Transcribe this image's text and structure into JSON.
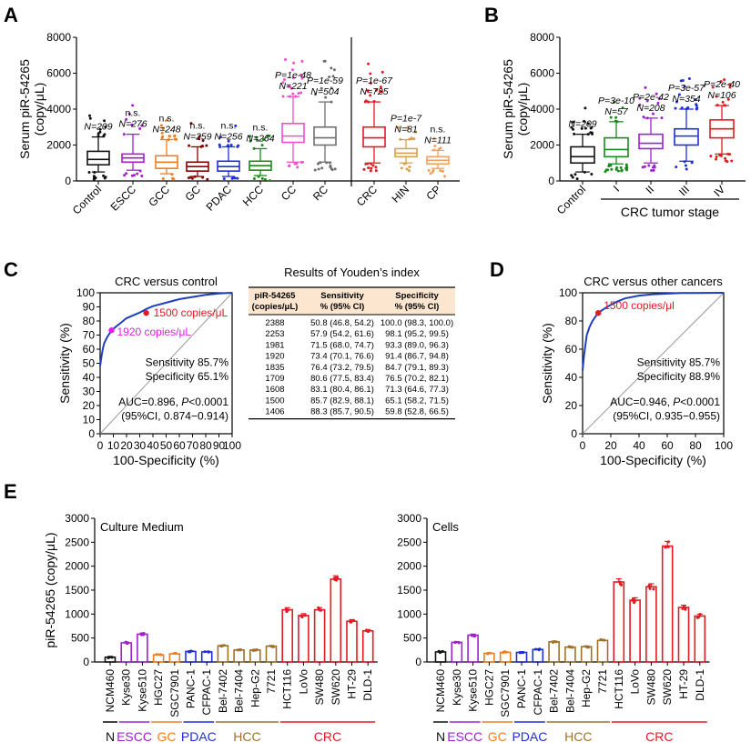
{
  "colors": {
    "black": "#111111",
    "purple": "#a020d0",
    "orange": "#f07e1e",
    "darkred": "#8b0000",
    "blue": "#1f2fd8",
    "green": "#1a8a1a",
    "pink": "#f24fd0",
    "gray": "#6f6f6f",
    "red": "#e31b23",
    "tan": "#d8a050",
    "rocblue": "#1f3fbf",
    "brown": "#a0702a",
    "salmon": "#f0a060"
  },
  "chart_data": [
    {
      "panel": "A",
      "type": "box",
      "ylabel": [
        "Serum piR-54265",
        "(copy/μL)"
      ],
      "ylim": [
        0,
        8000
      ],
      "yticks": [
        0,
        2000,
        4000,
        6000,
        8000
      ],
      "categories": [
        "Control",
        "ESCC",
        "GCC",
        "GC",
        "PDAC",
        "HCC",
        "CC",
        "RC",
        "CRC",
        "HIN",
        "CP"
      ],
      "stats": [
        {
          "label": "Control",
          "color": "#111111",
          "min": 500,
          "q1": 900,
          "med": 1200,
          "q3": 1650,
          "max": 2450,
          "p": "",
          "n": "N=209"
        },
        {
          "label": "ESCC",
          "color": "#a020d0",
          "min": 600,
          "q1": 1050,
          "med": 1280,
          "q3": 1500,
          "max": 2600,
          "p": "n.s.",
          "n": "N=276"
        },
        {
          "label": "GCC",
          "color": "#f07e1e",
          "min": 400,
          "q1": 700,
          "med": 1050,
          "q3": 1400,
          "max": 2300,
          "p": "n.s.",
          "n": "N=248"
        },
        {
          "label": "GC",
          "color": "#8b0000",
          "min": 250,
          "q1": 550,
          "med": 800,
          "q3": 1050,
          "max": 1900,
          "p": "n.s.",
          "n": "N=259"
        },
        {
          "label": "PDAC",
          "color": "#1f2fd8",
          "min": 250,
          "q1": 550,
          "med": 800,
          "q3": 1100,
          "max": 1900,
          "p": "n.s.",
          "n": "N=256"
        },
        {
          "label": "HCC",
          "color": "#1a8a1a",
          "min": 300,
          "q1": 600,
          "med": 850,
          "q3": 1100,
          "max": 1800,
          "p": "n.s.",
          "n": "N=264"
        },
        {
          "label": "CC",
          "color": "#f24fd0",
          "min": 1050,
          "q1": 2150,
          "med": 2500,
          "q3": 3200,
          "max": 4700,
          "p": "P=1e-48",
          "n": "N=221"
        },
        {
          "label": "RC",
          "color": "#6f6f6f",
          "min": 1050,
          "q1": 2000,
          "med": 2400,
          "q3": 3000,
          "max": 4400,
          "p": "P=1e-59",
          "n": "N=504"
        },
        {
          "label": "CRC",
          "color": "#e31b23",
          "min": 1000,
          "q1": 1900,
          "med": 2400,
          "q3": 3000,
          "max": 4400,
          "p": "P=1e-67",
          "n": "N=725"
        },
        {
          "label": "HIN",
          "color": "#d8a050",
          "min": 1000,
          "q1": 1350,
          "med": 1550,
          "q3": 1800,
          "max": 2300,
          "p": "P=1e-7",
          "n": "N=81"
        },
        {
          "label": "CP",
          "color": "#f0a060",
          "min": 700,
          "q1": 950,
          "med": 1150,
          "q3": 1350,
          "max": 1700,
          "p": "n.s.",
          "n": "N=111"
        }
      ]
    },
    {
      "panel": "B",
      "type": "box",
      "ylabel": [
        "Serum piR-54265",
        "(copy/μL)"
      ],
      "xlabel": "CRC tumor stage",
      "ylim": [
        0,
        8000
      ],
      "yticks": [
        0,
        2000,
        4000,
        6000,
        8000
      ],
      "categories": [
        "Control",
        "I",
        "II",
        "III",
        "IV"
      ],
      "stats": [
        {
          "label": "Control",
          "color": "#111111",
          "min": 500,
          "q1": 1000,
          "med": 1350,
          "q3": 1900,
          "max": 2600,
          "p": "",
          "n": "N=209"
        },
        {
          "label": "I",
          "color": "#1a8a1a",
          "min": 950,
          "q1": 1350,
          "med": 1750,
          "q3": 2400,
          "max": 3300,
          "p": "P=3e-10",
          "n": "N=57"
        },
        {
          "label": "II",
          "color": "#a020d0",
          "min": 1000,
          "q1": 1800,
          "med": 2100,
          "q3": 2600,
          "max": 3500,
          "p": "P=2e-42",
          "n": "N=208"
        },
        {
          "label": "III",
          "color": "#1f2fd8",
          "min": 1100,
          "q1": 2000,
          "med": 2500,
          "q3": 2900,
          "max": 4000,
          "p": "P=3e-57",
          "n": "N=354"
        },
        {
          "label": "IV",
          "color": "#e31b23",
          "min": 1500,
          "q1": 2400,
          "med": 2900,
          "q3": 3400,
          "max": 4200,
          "p": "P=2e-40",
          "n": "N=106"
        }
      ]
    },
    {
      "panel": "C",
      "type": "roc",
      "title": "CRC versus control",
      "xlabel": "100-Specificity (%)",
      "ylabel": "Sensitivity (%)",
      "xlim": [
        0,
        100
      ],
      "ylim": [
        0,
        100
      ],
      "ticks": [
        0,
        10,
        20,
        30,
        40,
        50,
        60,
        70,
        80,
        90,
        100
      ],
      "curve": [
        [
          0,
          48
        ],
        [
          1,
          55
        ],
        [
          2,
          60
        ],
        [
          3,
          64
        ],
        [
          5,
          68
        ],
        [
          7,
          71
        ],
        [
          9,
          73.5
        ],
        [
          12,
          76
        ],
        [
          16,
          79
        ],
        [
          20,
          82
        ],
        [
          25,
          84
        ],
        [
          30,
          86
        ],
        [
          35,
          88.5
        ],
        [
          40,
          90.5
        ],
        [
          50,
          93
        ],
        [
          60,
          95.5
        ],
        [
          70,
          97
        ],
        [
          80,
          98.5
        ],
        [
          90,
          99.5
        ],
        [
          100,
          100
        ]
      ],
      "points": [
        {
          "x": 34.9,
          "y": 85.7,
          "color": "#e31b23",
          "label": "1500 copies/μL"
        },
        {
          "x": 8.6,
          "y": 73.4,
          "color": "#e020e0",
          "label": "1920 copies/μL"
        }
      ],
      "stats": [
        "Sensitivity 85.7%",
        "Specificity 65.1%",
        "AUC=0.896, P<0.0001",
        "(95%CI, 0.874−0.914)"
      ]
    },
    {
      "panel": "C-table",
      "type": "table",
      "title": "Results of  Youden’s index",
      "headers": [
        [
          "piR-54265",
          "(copies/μL)"
        ],
        [
          "Sensitivity",
          "% (95% CI)"
        ],
        [
          "Specificity",
          "% (95% CI)"
        ]
      ],
      "rows": [
        [
          "2388",
          "50.8 (46.8, 54.2)",
          "100.0 (98.3, 100.0)"
        ],
        [
          "2253",
          "57.9 (54.2, 61.6)",
          "98.1 (95.2, 99.5)"
        ],
        [
          "1981",
          "71.5 (68.0, 74.7)",
          "93.3 (89.0, 96.3)"
        ],
        [
          "1920",
          "73.4 (70.1, 76.6)",
          "91.4 (86.7, 94.8)"
        ],
        [
          "1835",
          "76.4 (73.2, 79.5)",
          "84.7 (79.1, 89.3)"
        ],
        [
          "1709",
          "80.6 (77.5, 83.4)",
          "76.5 (70.2, 82.1)"
        ],
        [
          "1608",
          "83.1 (80.4, 86.1)",
          "71.3 (64.6, 77.3)"
        ],
        [
          "1500",
          "85.7 (82.9, 88.1)",
          "65.1 (58.2, 71.5)"
        ],
        [
          "1406",
          "88.3 (85.7, 90.5)",
          "59.8 (52.8, 66.5)"
        ]
      ]
    },
    {
      "panel": "D",
      "type": "roc",
      "title": "CRC versus other cancers",
      "xlabel": "100-Specificity (%)",
      "ylabel": "Sensitivity (%)",
      "xlim": [
        0,
        100
      ],
      "ylim": [
        0,
        100
      ],
      "ticks": [
        0,
        20,
        40,
        60,
        80,
        100
      ],
      "curve": [
        [
          0,
          45
        ],
        [
          1,
          55
        ],
        [
          2,
          63
        ],
        [
          3,
          70
        ],
        [
          5,
          76
        ],
        [
          7,
          80
        ],
        [
          9,
          83
        ],
        [
          11,
          85.7
        ],
        [
          15,
          88.5
        ],
        [
          20,
          91.5
        ],
        [
          25,
          94
        ],
        [
          30,
          96
        ],
        [
          40,
          98
        ],
        [
          50,
          99
        ],
        [
          70,
          99.8
        ],
        [
          100,
          100
        ]
      ],
      "points": [
        {
          "x": 11.1,
          "y": 85.7,
          "color": "#e31b23",
          "label": "1500 copies/μl"
        }
      ],
      "stats": [
        "Sensitivity 85.7%",
        "Specificity 88.9%",
        "AUC=0.946, P<0.0001",
        "(95%CI, 0.935−0.955)"
      ]
    },
    {
      "panel": "E1",
      "type": "bar",
      "title": "Culture Medium",
      "ylabel": "piR-54265 (copy/μL)",
      "ylim": [
        0,
        3000
      ],
      "yticks": [
        0,
        500,
        1000,
        1500,
        2000,
        2500,
        3000
      ],
      "categories": [
        "NCM460",
        "Kyse30",
        "Kyse510",
        "HGC27",
        "SGC7901",
        "PANC-1",
        "CFPAC-1",
        "Bel-7402",
        "Bel-7404",
        "Hep-G2",
        "7721",
        "HCT116",
        "LoVo",
        "SW480",
        "SW620",
        "HT-29",
        "DLD-1"
      ],
      "values": [
        100,
        400,
        580,
        150,
        170,
        220,
        210,
        340,
        250,
        250,
        330,
        1090,
        970,
        1090,
        1730,
        850,
        650
      ],
      "colors": [
        "#111111",
        "#a020d0",
        "#a020d0",
        "#f07e1e",
        "#f07e1e",
        "#1f2fd8",
        "#1f2fd8",
        "#a0702a",
        "#a0702a",
        "#a0702a",
        "#a0702a",
        "#e31b23",
        "#e31b23",
        "#e31b23",
        "#e31b23",
        "#e31b23",
        "#e31b23"
      ],
      "groups": [
        {
          "label": "N",
          "color": "#111111",
          "from": 0,
          "to": 0
        },
        {
          "label": "ESCC",
          "color": "#a020d0",
          "from": 1,
          "to": 2
        },
        {
          "label": "GC",
          "color": "#f07e1e",
          "from": 3,
          "to": 4
        },
        {
          "label": "PDAC",
          "color": "#1f2fd8",
          "from": 5,
          "to": 6
        },
        {
          "label": "HCC",
          "color": "#a0702a",
          "from": 7,
          "to": 10
        },
        {
          "label": "CRC",
          "color": "#e31b23",
          "from": 11,
          "to": 16
        }
      ]
    },
    {
      "panel": "E2",
      "type": "bar",
      "title": "Cells",
      "ylim": [
        0,
        3000
      ],
      "yticks": [
        0,
        500,
        1000,
        1500,
        2000,
        2500,
        3000
      ],
      "categories": [
        "NCM460",
        "Kyse30",
        "Kyse510",
        "HGC27",
        "SGC7901",
        "PANC-1",
        "CFPAC-1",
        "Bel-7402",
        "Bel-7404",
        "Hep-G2",
        "7721",
        "HCT116",
        "LoVo",
        "SW480",
        "SW620",
        "HT-29",
        "DLD-1"
      ],
      "values": [
        210,
        410,
        560,
        180,
        200,
        200,
        260,
        420,
        310,
        320,
        450,
        1670,
        1290,
        1570,
        2420,
        1140,
        960
      ],
      "colors": [
        "#111111",
        "#a020d0",
        "#a020d0",
        "#f07e1e",
        "#f07e1e",
        "#1f2fd8",
        "#1f2fd8",
        "#a0702a",
        "#a0702a",
        "#a0702a",
        "#a0702a",
        "#e31b23",
        "#e31b23",
        "#e31b23",
        "#e31b23",
        "#e31b23",
        "#e31b23"
      ],
      "groups": [
        {
          "label": "N",
          "color": "#111111",
          "from": 0,
          "to": 0
        },
        {
          "label": "ESCC",
          "color": "#a020d0",
          "from": 1,
          "to": 2
        },
        {
          "label": "GC",
          "color": "#f07e1e",
          "from": 3,
          "to": 4
        },
        {
          "label": "PDAC",
          "color": "#1f2fd8",
          "from": 5,
          "to": 6
        },
        {
          "label": "HCC",
          "color": "#a0702a",
          "from": 7,
          "to": 10
        },
        {
          "label": "CRC",
          "color": "#e31b23",
          "from": 11,
          "to": 16
        }
      ]
    }
  ],
  "panel_letters": [
    "A",
    "B",
    "C",
    "D",
    "E"
  ]
}
